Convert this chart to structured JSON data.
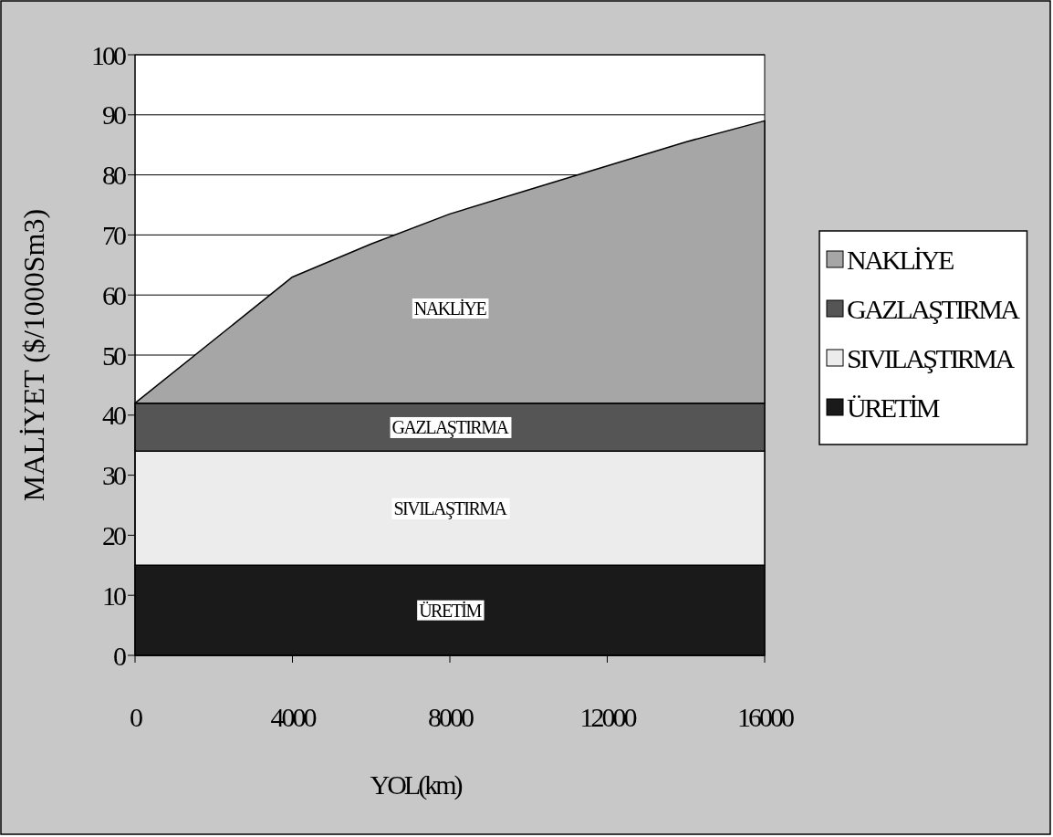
{
  "chart_data": {
    "type": "area",
    "stacked": true,
    "xlabel": "YOL(km)",
    "ylabel": "MALİYET ($/1000Sm3)",
    "x": [
      0,
      4000,
      6000,
      8000,
      10000,
      12000,
      14000,
      16000
    ],
    "series": [
      {
        "name": "ÜRETİM",
        "color": "#1a1a1a",
        "values": [
          15,
          15,
          15,
          15,
          15,
          15,
          15,
          15
        ]
      },
      {
        "name": "SIVILAŞTIRMA",
        "color": "#ececec",
        "values": [
          19,
          19,
          19,
          19,
          19,
          19,
          19,
          19
        ]
      },
      {
        "name": "GAZLAŞTIRMA",
        "color": "#555555",
        "values": [
          8,
          8,
          8,
          8,
          8,
          8,
          8,
          8
        ]
      },
      {
        "name": "NAKLİYE",
        "color": "#a6a6a6",
        "values": [
          0,
          21,
          26.5,
          31.5,
          35.5,
          39.5,
          43.5,
          47
        ]
      }
    ],
    "xlim": [
      0,
      16000
    ],
    "xticks": [
      0,
      4000,
      8000,
      12000,
      16000
    ],
    "ylim": [
      0,
      100
    ],
    "yticks": [
      0,
      10,
      20,
      30,
      40,
      50,
      60,
      70,
      80,
      90,
      100
    ],
    "grid": "y",
    "legend": "right"
  }
}
